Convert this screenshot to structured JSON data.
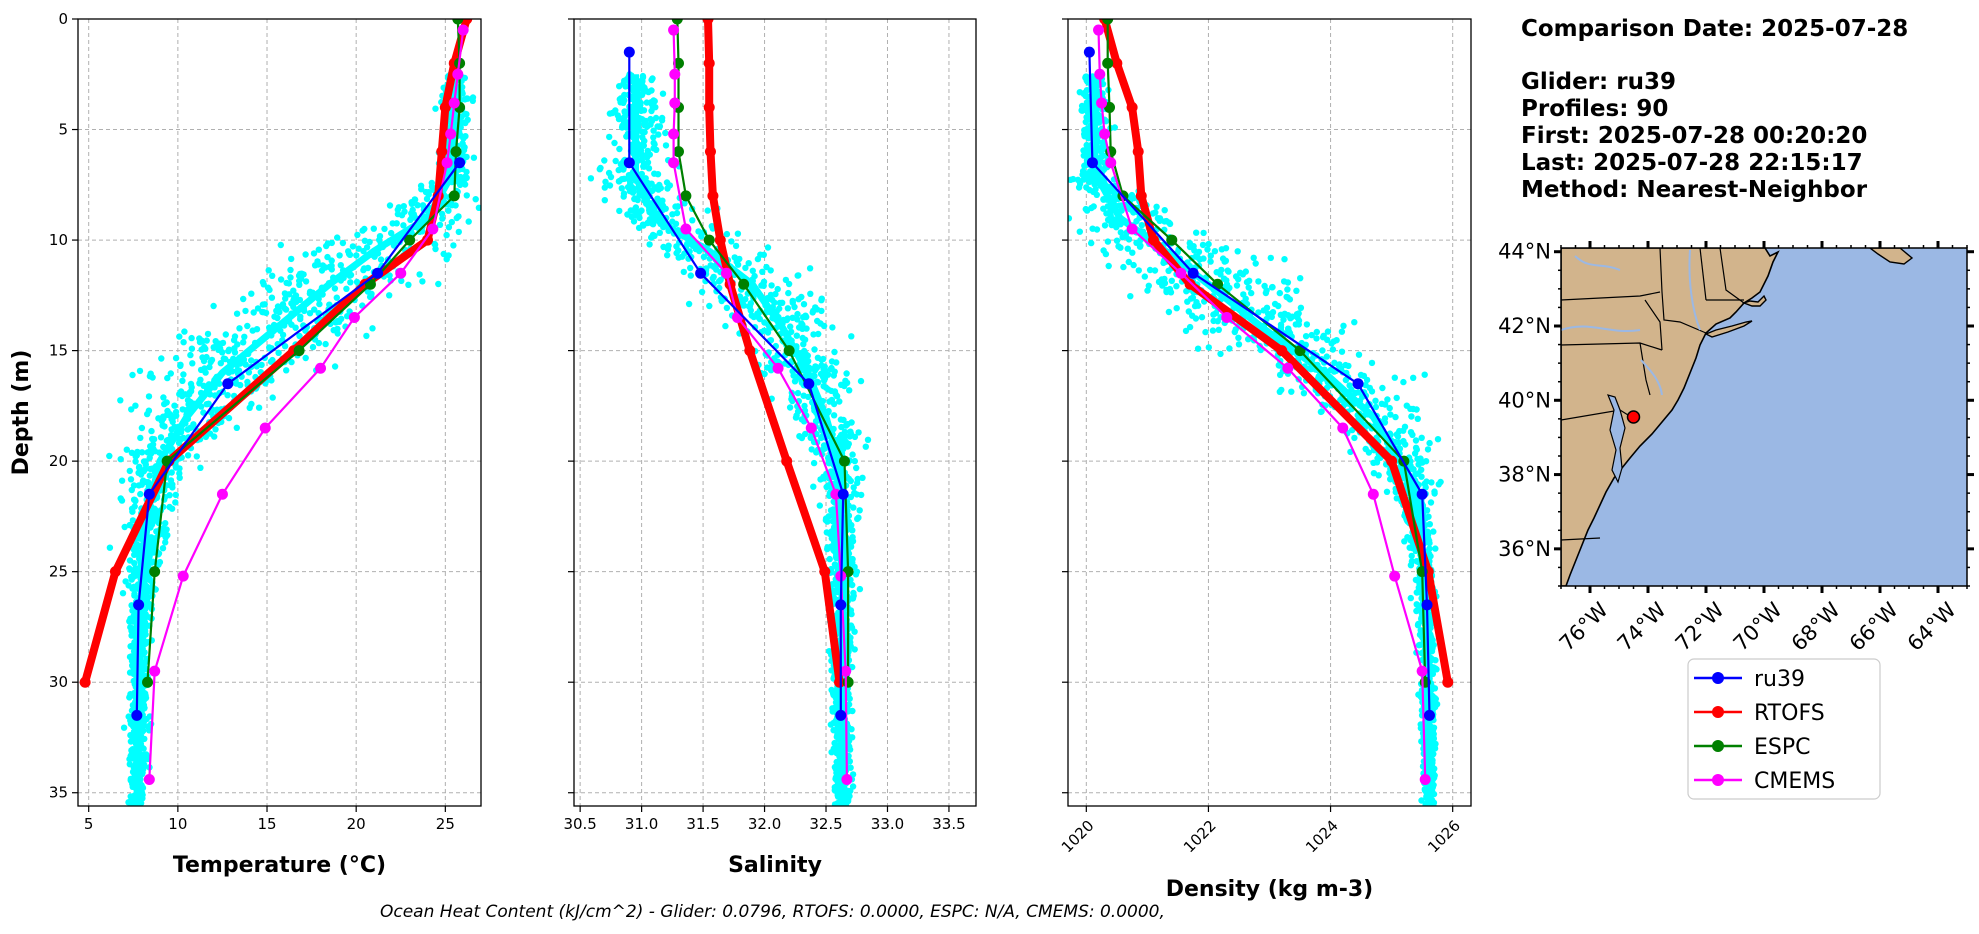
{
  "info": {
    "comparison_date": "Comparison Date: 2025-07-28",
    "glider": "Glider: ru39",
    "profiles": "Profiles: 90",
    "first": "First: 2025-07-28 00:20:20",
    "last": "Last: 2025-07-28 22:15:17",
    "method": "Method: Nearest-Neighbor"
  },
  "footer": "Ocean Heat Content (kJ/cm^2) - Glider: 0.0796,  RTOFS: 0.0000,  ESPC: N/A,  CMEMS: 0.0000,",
  "colors": {
    "ru39": "#0000ff",
    "RTOFS": "#ff0000",
    "ESPC": "#008000",
    "CMEMS": "#ff00ff",
    "scatter": "#00ffff",
    "land": "#d2b48c",
    "ocean": "#9bb8e4"
  },
  "legend": [
    {
      "name": "ru39",
      "color": "#0000ff"
    },
    {
      "name": "RTOFS",
      "color": "#ff0000"
    },
    {
      "name": "ESPC",
      "color": "#008000"
    },
    {
      "name": "CMEMS",
      "color": "#ff00ff"
    }
  ],
  "chart_data": [
    {
      "type": "line",
      "xlabel": "Temperature ($^oC$)",
      "xlabel_display": "Temperature (°C)",
      "ylabel": "Depth (m)",
      "xlim": [
        4.4,
        27.0
      ],
      "ylim": [
        35.6,
        0
      ],
      "xticks": [
        5,
        10,
        15,
        20,
        25
      ],
      "yticks": [
        0,
        5,
        10,
        15,
        20,
        25,
        30,
        35
      ],
      "grid": true,
      "series": [
        {
          "name": "ru39",
          "x": [
            25.8,
            21.2,
            12.8,
            8.4,
            7.8,
            7.7
          ],
          "y": [
            6.5,
            11.5,
            16.5,
            21.5,
            26.5,
            31.5
          ]
        },
        {
          "name": "RTOFS",
          "x": [
            26.2,
            25.5,
            25.0,
            24.8,
            24.6,
            24.0,
            20.5,
            16.5,
            9.5,
            6.5,
            4.8
          ],
          "y": [
            0,
            2,
            4,
            6,
            8,
            10,
            12,
            15,
            20,
            25,
            30
          ]
        },
        {
          "name": "ESPC",
          "x": [
            25.7,
            25.8,
            25.8,
            25.6,
            25.5,
            23.0,
            20.8,
            16.8,
            9.4,
            8.7,
            8.3
          ],
          "y": [
            0,
            2,
            4,
            6,
            8,
            10,
            12,
            15,
            20,
            25,
            30
          ]
        },
        {
          "name": "CMEMS",
          "x": [
            26.0,
            25.7,
            25.5,
            25.3,
            25.1,
            24.3,
            22.5,
            19.9,
            18.0,
            14.9,
            12.5,
            10.3,
            8.7,
            8.4
          ],
          "y": [
            0.5,
            2.5,
            3.8,
            5.2,
            6.5,
            9.5,
            11.5,
            13.5,
            15.8,
            18.5,
            21.5,
            25.2,
            29.5,
            34.4
          ]
        }
      ]
    },
    {
      "type": "line",
      "xlabel": "Salinity",
      "xlim": [
        30.45,
        33.72
      ],
      "ylim": [
        35.6,
        0
      ],
      "xticks": [
        30.5,
        31.0,
        31.5,
        32.0,
        32.5,
        33.0,
        33.5
      ],
      "yticks": [
        0,
        5,
        10,
        15,
        20,
        25,
        30,
        35
      ],
      "grid": true,
      "series": [
        {
          "name": "ru39",
          "x": [
            30.9,
            30.9,
            31.48,
            32.36,
            32.64,
            32.62,
            32.62
          ],
          "y": [
            1.5,
            6.5,
            11.5,
            16.5,
            21.5,
            26.5,
            31.5
          ]
        },
        {
          "name": "RTOFS",
          "x": [
            31.54,
            31.55,
            31.55,
            31.56,
            31.58,
            31.64,
            31.72,
            31.88,
            32.18,
            32.49,
            32.61
          ],
          "y": [
            0,
            2,
            4,
            6,
            8,
            10,
            12,
            15,
            20,
            25,
            30
          ]
        },
        {
          "name": "ESPC",
          "x": [
            31.29,
            31.3,
            31.3,
            31.3,
            31.36,
            31.55,
            31.83,
            32.2,
            32.65,
            32.68,
            32.68
          ],
          "y": [
            0,
            2,
            4,
            6,
            8,
            10,
            12,
            15,
            20,
            25,
            30
          ]
        },
        {
          "name": "CMEMS",
          "x": [
            31.26,
            31.27,
            31.27,
            31.26,
            31.26,
            31.36,
            31.69,
            31.78,
            32.11,
            32.38,
            32.58,
            32.62,
            32.66,
            32.67
          ],
          "y": [
            0.5,
            2.5,
            3.8,
            5.2,
            6.5,
            9.5,
            11.5,
            13.5,
            15.8,
            18.5,
            21.5,
            25.2,
            29.5,
            34.4
          ]
        }
      ]
    },
    {
      "type": "line",
      "xlabel": "Density (kg m-3)",
      "xlim": [
        1019.7,
        1026.3
      ],
      "ylim": [
        35.6,
        0
      ],
      "xticks": [
        1020,
        1022,
        1024,
        1026
      ],
      "yticks": [
        0,
        5,
        10,
        15,
        20,
        25,
        30,
        35
      ],
      "grid": true,
      "series": [
        {
          "name": "ru39",
          "x": [
            1020.05,
            1020.1,
            1021.75,
            1024.45,
            1025.5,
            1025.58,
            1025.62
          ],
          "y": [
            1.5,
            6.5,
            11.5,
            16.5,
            21.5,
            26.5,
            31.5
          ]
        },
        {
          "name": "RTOFS",
          "x": [
            1020.3,
            1020.5,
            1020.75,
            1020.85,
            1020.9,
            1021.1,
            1021.7,
            1023.2,
            1025.0,
            1025.6,
            1025.92
          ],
          "y": [
            0,
            2,
            4,
            6,
            8,
            10,
            12,
            15,
            20,
            25,
            30
          ]
        },
        {
          "name": "ESPC",
          "x": [
            1020.35,
            1020.35,
            1020.38,
            1020.4,
            1020.6,
            1021.4,
            1022.15,
            1023.5,
            1025.2,
            1025.5,
            1025.55
          ],
          "y": [
            0,
            2,
            4,
            6,
            8,
            10,
            12,
            15,
            20,
            25,
            30
          ]
        },
        {
          "name": "CMEMS",
          "x": [
            1020.2,
            1020.22,
            1020.25,
            1020.3,
            1020.4,
            1020.75,
            1021.55,
            1022.3,
            1023.3,
            1024.2,
            1024.7,
            1025.05,
            1025.5,
            1025.55
          ],
          "y": [
            0.5,
            2.5,
            3.8,
            5.2,
            6.5,
            9.5,
            11.5,
            13.5,
            15.8,
            18.5,
            21.5,
            25.2,
            29.5,
            34.4
          ]
        }
      ]
    }
  ],
  "map": {
    "lat_labels": [
      "44°N",
      "42°N",
      "40°N",
      "38°N",
      "36°N"
    ],
    "lat_values": [
      44,
      42,
      40,
      38,
      36
    ],
    "lon_labels": [
      "76°W",
      "74°W",
      "72°W",
      "70°W",
      "68°W",
      "66°W",
      "64°W"
    ],
    "lon_values": [
      -76,
      -74,
      -72,
      -70,
      -68,
      -66,
      -64
    ],
    "extent": {
      "lon_min": -77,
      "lon_max": -63,
      "lat_min": 35,
      "lat_max": 44.1
    },
    "glider_position": {
      "lon": -74.5,
      "lat": 39.55
    }
  }
}
